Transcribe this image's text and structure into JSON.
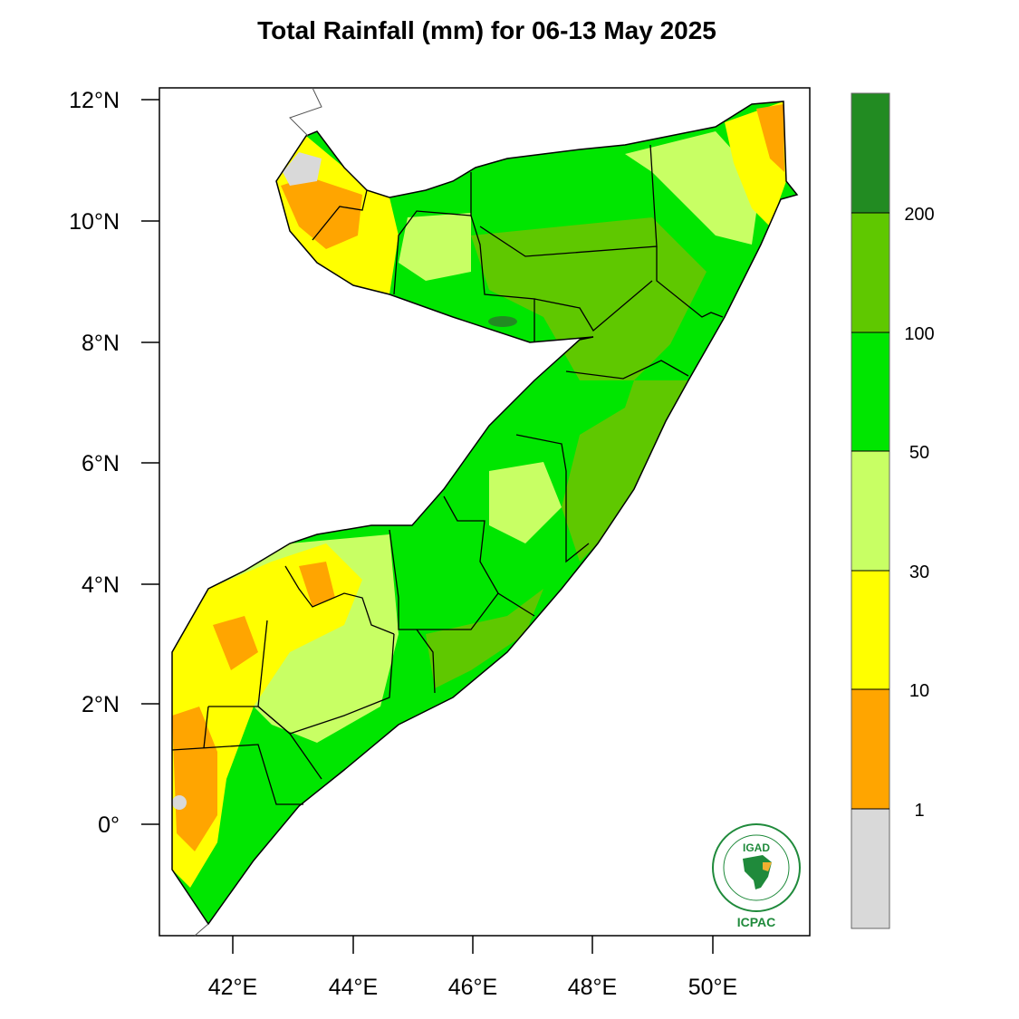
{
  "title": "Total Rainfall (mm) for 06-13 May 2025",
  "axes": {
    "lat_labels": [
      "12°N",
      "10°N",
      "8°N",
      "6°N",
      "4°N",
      "2°N",
      "0°"
    ],
    "lon_labels": [
      "42°E",
      "44°E",
      "46°E",
      "48°E",
      "50°E"
    ]
  },
  "colorbar": {
    "colors": [
      "#d9d9d9",
      "#ffa500",
      "#ffff00",
      "#c8ff64",
      "#00e600",
      "#5fc800",
      "#228b22"
    ],
    "labels": [
      "1",
      "10",
      "30",
      "50",
      "100",
      "200"
    ]
  },
  "logo": {
    "top_text": "IGAD",
    "bottom_text": "ICPAC"
  },
  "colors": {
    "outline": "#000000",
    "gray": "#d9d9d9",
    "orange": "#ffa500",
    "yellow": "#ffff00",
    "light_green": "#c8ff64",
    "green": "#00e600",
    "mid_green": "#5fc800",
    "dark_green": "#228b22"
  }
}
